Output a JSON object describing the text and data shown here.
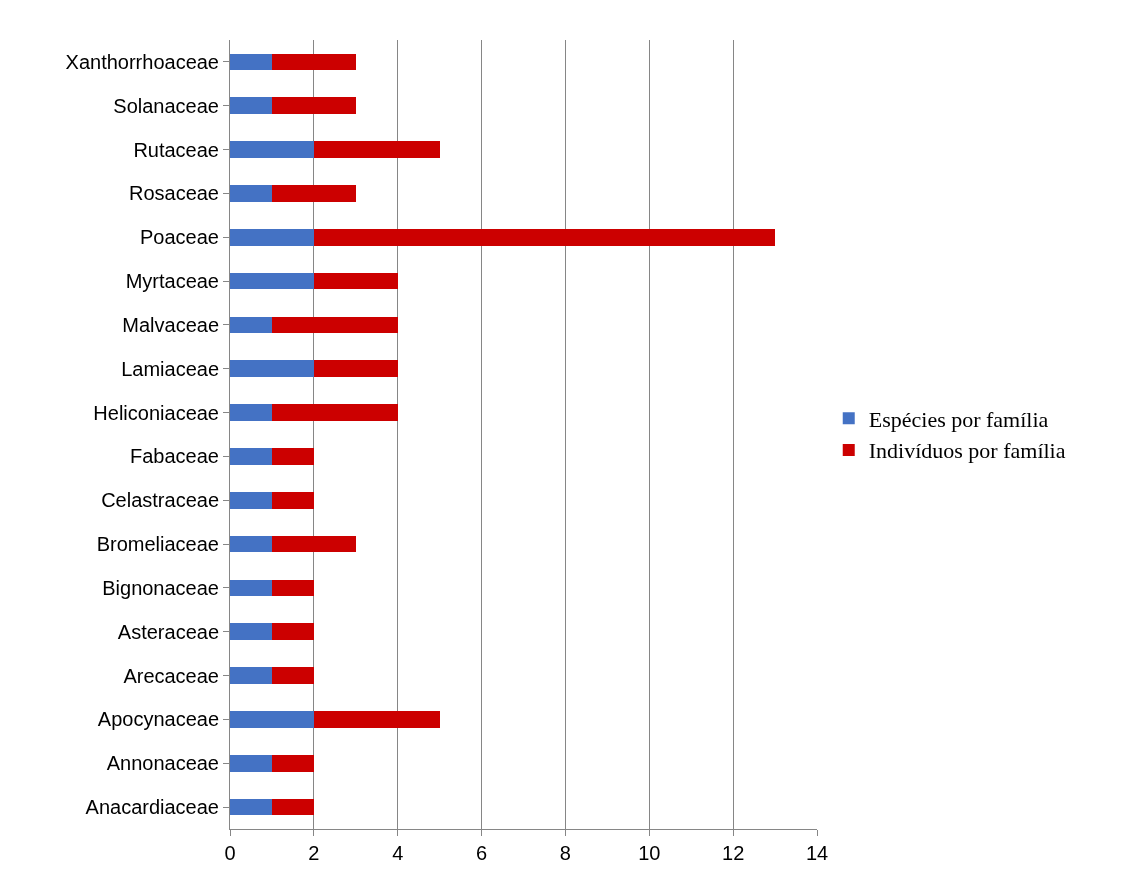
{
  "chart_data": {
    "type": "bar",
    "orientation": "horizontal",
    "stacked": true,
    "categories": [
      "Xanthorrhoaceae",
      "Solanaceae",
      "Rutaceae",
      "Rosaceae",
      "Poaceae",
      "Myrtaceae",
      "Malvaceae",
      "Lamiaceae",
      "Heliconiaceae",
      "Fabaceae",
      "Celastraceae",
      "Bromeliaceae",
      "Bignonaceae",
      "Asteraceae",
      "Arecaceae",
      "Apocynaceae",
      "Annonaceae",
      "Anacardiaceae"
    ],
    "series": [
      {
        "name": "Espécies por família",
        "color": "#4472c4",
        "values": [
          1,
          1,
          2,
          1,
          2,
          2,
          1,
          2,
          1,
          1,
          1,
          1,
          1,
          1,
          1,
          2,
          1,
          1
        ]
      },
      {
        "name": "Indivíduos por família",
        "color": "#cc0000",
        "values": [
          2,
          2,
          3,
          2,
          11,
          2,
          3,
          2,
          3,
          1,
          1,
          2,
          1,
          1,
          1,
          3,
          1,
          1
        ]
      }
    ],
    "xlim": [
      0,
      14
    ],
    "xticks": [
      0,
      2,
      4,
      6,
      8,
      10,
      12,
      14
    ],
    "grid": "x",
    "legend": "right"
  }
}
